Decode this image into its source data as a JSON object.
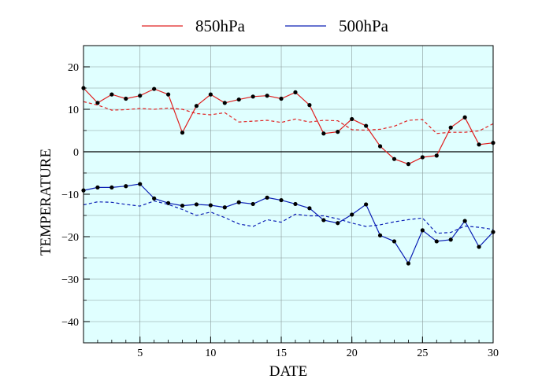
{
  "chart_data": {
    "type": "line",
    "xlabel": "DATE",
    "ylabel": "TEMPERATURE",
    "xlim": [
      1,
      30
    ],
    "ylim": [
      -45,
      25
    ],
    "xticks": [
      5,
      10,
      15,
      20,
      25,
      30
    ],
    "yticks": [
      -40,
      -30,
      -20,
      -10,
      0,
      10,
      20
    ],
    "grid": true,
    "background_color": "#e0ffff",
    "zero_line": true,
    "legend": {
      "position": "top",
      "entries": [
        "850hPa",
        "500hPa"
      ]
    },
    "x": [
      1,
      2,
      3,
      4,
      5,
      6,
      7,
      8,
      9,
      10,
      11,
      12,
      13,
      14,
      15,
      16,
      17,
      18,
      19,
      20,
      21,
      22,
      23,
      24,
      25,
      26,
      27,
      28,
      29,
      30
    ],
    "series": [
      {
        "name": "850hPa",
        "color": "#e02020",
        "style": "solid",
        "markers": true,
        "values": [
          15.0,
          11.5,
          13.5,
          12.5,
          13.2,
          14.8,
          13.5,
          4.5,
          10.8,
          13.5,
          11.5,
          12.3,
          13.0,
          13.2,
          12.5,
          14.0,
          11.0,
          4.3,
          4.7,
          7.7,
          6.1,
          1.3,
          -1.7,
          -2.9,
          -1.3,
          -0.9,
          5.7,
          8.1,
          1.7,
          2.1
        ]
      },
      {
        "name": "",
        "color": "#e02020",
        "style": "dashed",
        "markers": false,
        "values": [
          11.8,
          11.0,
          9.8,
          9.9,
          10.2,
          10.0,
          10.3,
          10.0,
          9.0,
          8.7,
          9.2,
          7.0,
          7.2,
          7.4,
          6.9,
          7.7,
          7.0,
          7.4,
          7.3,
          5.2,
          5.1,
          5.3,
          6.0,
          7.4,
          7.6,
          4.3,
          4.6,
          4.6,
          4.9,
          6.6
        ]
      },
      {
        "name": "500hPa",
        "color": "#0a1eb4",
        "style": "solid",
        "markers": true,
        "values": [
          -9.1,
          -8.4,
          -8.4,
          -8.1,
          -7.6,
          -11.0,
          -12.1,
          -12.7,
          -12.4,
          -12.6,
          -13.1,
          -11.9,
          -12.3,
          -10.8,
          -11.4,
          -12.3,
          -13.3,
          -16.1,
          -16.8,
          -14.8,
          -12.4,
          -19.7,
          -21.1,
          -26.3,
          -18.5,
          -21.1,
          -20.7,
          -16.3,
          -22.4,
          -18.9
        ]
      },
      {
        "name": "",
        "color": "#0a1eb4",
        "style": "dashed",
        "markers": false,
        "values": [
          -12.5,
          -11.8,
          -11.9,
          -12.4,
          -12.8,
          -11.6,
          -12.4,
          -13.6,
          -15.0,
          -14.2,
          -15.5,
          -17.0,
          -17.6,
          -16.0,
          -16.6,
          -14.7,
          -15.1,
          -15.1,
          -15.8,
          -16.8,
          -17.6,
          -17.2,
          -16.5,
          -16.0,
          -15.6,
          -19.2,
          -19.0,
          -17.5,
          -17.8,
          -18.3
        ]
      }
    ]
  }
}
